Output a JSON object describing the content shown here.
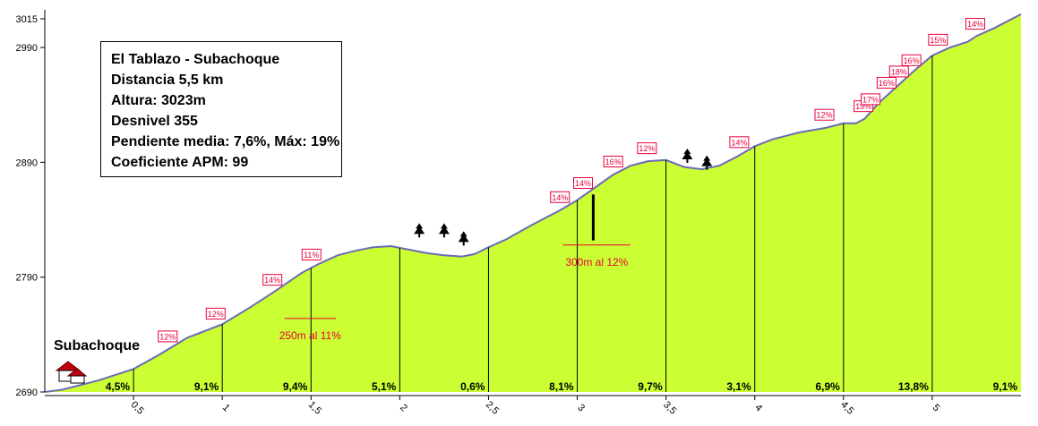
{
  "chart_data": {
    "type": "area",
    "title": "",
    "xlabel": "",
    "ylabel": "",
    "xlim": [
      0,
      5.5
    ],
    "ylim": [
      2690,
      3015
    ],
    "y_ticks": [
      {
        "value": 3015,
        "label": "3015"
      },
      {
        "value": 2990,
        "label": "2990"
      },
      {
        "value": 2890,
        "label": "2890"
      },
      {
        "value": 2790,
        "label": "2790"
      },
      {
        "value": 2690,
        "label": "2690"
      }
    ],
    "x_ticks": [
      {
        "value": 0.5,
        "label": "0,5"
      },
      {
        "value": 1,
        "label": "1"
      },
      {
        "value": 1.5,
        "label": "1,5"
      },
      {
        "value": 2,
        "label": "2"
      },
      {
        "value": 2.5,
        "label": "2,5"
      },
      {
        "value": 3,
        "label": "3"
      },
      {
        "value": 3.5,
        "label": "3,5"
      },
      {
        "value": 4,
        "label": "4"
      },
      {
        "value": 4.5,
        "label": "4,5"
      },
      {
        "value": 5,
        "label": "5"
      }
    ],
    "grid": false,
    "fill_color": "#ccff33",
    "line_color": "#6b6bb5",
    "profile": {
      "x": [
        0,
        0.1,
        0.3,
        0.5,
        0.65,
        0.8,
        1.0,
        1.15,
        1.3,
        1.45,
        1.55,
        1.65,
        1.75,
        1.85,
        1.95,
        2.05,
        2.15,
        2.25,
        2.35,
        2.42,
        2.5,
        2.6,
        2.75,
        2.9,
        3.0,
        3.1,
        3.2,
        3.3,
        3.4,
        3.5,
        3.6,
        3.7,
        3.8,
        3.9,
        4.0,
        4.1,
        4.25,
        4.4,
        4.5,
        4.57,
        4.62,
        4.7,
        4.8,
        4.9,
        5.0,
        5.1,
        5.2,
        5.25,
        5.35,
        5.5
      ],
      "y": [
        2690,
        2692,
        2700,
        2710,
        2723,
        2737,
        2749,
        2763,
        2778,
        2794,
        2802,
        2809,
        2813,
        2816,
        2817,
        2814,
        2811,
        2809,
        2808,
        2810,
        2816,
        2823,
        2836,
        2848,
        2857,
        2868,
        2879,
        2887,
        2891,
        2892,
        2886,
        2884,
        2887,
        2895,
        2904,
        2910,
        2916,
        2920,
        2924,
        2924,
        2928,
        2942,
        2956,
        2970,
        2983,
        2990,
        2995,
        3000,
        3007,
        3019
      ]
    },
    "km_segments": [
      {
        "x_start": 0,
        "x_end": 0.5,
        "gradient": "4,5%"
      },
      {
        "x_start": 0.5,
        "x_end": 1,
        "gradient": "9,1%"
      },
      {
        "x_start": 1,
        "x_end": 1.5,
        "gradient": "9,4%"
      },
      {
        "x_start": 1.5,
        "x_end": 2,
        "gradient": "5,1%"
      },
      {
        "x_start": 2,
        "x_end": 2.5,
        "gradient": "0,6%"
      },
      {
        "x_start": 2.5,
        "x_end": 3,
        "gradient": "8,1%"
      },
      {
        "x_start": 3,
        "x_end": 3.5,
        "gradient": "9,7%"
      },
      {
        "x_start": 3.5,
        "x_end": 4,
        "gradient": "3,1%"
      },
      {
        "x_start": 4,
        "x_end": 4.5,
        "gradient": "6,9%"
      },
      {
        "x_start": 4.5,
        "x_end": 5,
        "gradient": "13,8%"
      },
      {
        "x_start": 5,
        "x_end": 5.5,
        "gradient": "9,1%"
      }
    ],
    "slope_tags": [
      {
        "x": 0.69,
        "text": "12%"
      },
      {
        "x": 0.96,
        "text": "12%"
      },
      {
        "x": 1.28,
        "text": "14%"
      },
      {
        "x": 1.5,
        "text": "11%"
      },
      {
        "x": 2.9,
        "text": "14%"
      },
      {
        "x": 3.03,
        "text": "14%"
      },
      {
        "x": 3.2,
        "text": "16%"
      },
      {
        "x": 3.39,
        "text": "12%"
      },
      {
        "x": 3.91,
        "text": "14%"
      },
      {
        "x": 4.39,
        "text": "12%"
      },
      {
        "x": 4.61,
        "text": "19%"
      },
      {
        "x": 4.65,
        "text": "17%"
      },
      {
        "x": 4.74,
        "text": "16%"
      },
      {
        "x": 4.81,
        "text": "18%"
      },
      {
        "x": 4.88,
        "text": "16%"
      },
      {
        "x": 5.03,
        "text": "15%"
      },
      {
        "x": 5.24,
        "text": "14%"
      }
    ],
    "annotations": [
      {
        "x_start": 1.35,
        "x_end": 1.64,
        "y": 2754,
        "text": "250m al 11%",
        "color": "#e8003a"
      },
      {
        "x_start": 2.92,
        "x_end": 3.3,
        "y": 2818,
        "text": "300m al 12%",
        "color": "#e8003a"
      }
    ],
    "marker_bar": {
      "x": 3.09,
      "y_bottom": 2822,
      "y_top": 2862
    },
    "trees": [
      {
        "x": 2.11,
        "y": 2830
      },
      {
        "x": 2.25,
        "y": 2830
      },
      {
        "x": 2.36,
        "y": 2823
      },
      {
        "x": 3.62,
        "y": 2895
      },
      {
        "x": 3.73,
        "y": 2889
      }
    ],
    "start_label": "Subachoque",
    "info_lines": [
      "El Tablazo - Subachoque",
      "Distancia 5,5 km",
      "Altura: 3023m",
      "Desnivel 355",
      "Pendiente media: 7,6%, Máx: 19%",
      "Coeficiente APM: 99"
    ]
  }
}
